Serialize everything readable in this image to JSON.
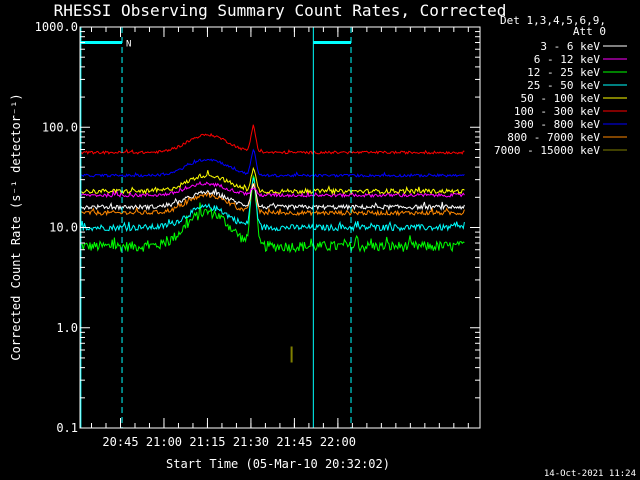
{
  "chart_data": {
    "type": "line",
    "title": "RHESSI Observing Summary Count Rates, Corrected",
    "xlabel": "Start Time (05-Mar-10 20:32:02)",
    "ylabel": "Corrected Count Rate (s⁻¹ detector⁻¹)",
    "y_scale": "log",
    "ylim": [
      0.1,
      1000
    ],
    "y_ticks": [
      {
        "value": 1000,
        "label": "1000.0"
      },
      {
        "value": 100,
        "label": "100.0"
      },
      {
        "value": 10,
        "label": "10.0"
      },
      {
        "value": 1,
        "label": "1.0"
      },
      {
        "value": 0.1,
        "label": "0.1"
      }
    ],
    "x_range_min": [
      0,
      138
    ],
    "x_ticks": [
      {
        "t": 13.97,
        "label": "20:45"
      },
      {
        "t": 28.97,
        "label": "21:00"
      },
      {
        "t": 43.97,
        "label": "21:15"
      },
      {
        "t": 58.97,
        "label": "21:30"
      },
      {
        "t": 73.97,
        "label": "21:45"
      },
      {
        "t": 88.97,
        "label": "22:00"
      }
    ],
    "grid": false,
    "legend_header": [
      "Det 1,3,4,5,6,9,",
      "Att 0"
    ],
    "series": [
      {
        "name": "3 - 6 keV",
        "color": "#ffffff",
        "base": 16,
        "hump": 1.4,
        "flare": 27,
        "noise": 0.05,
        "visible": true
      },
      {
        "name": "6 - 12 keV",
        "color": "#ff00ff",
        "base": 21,
        "hump": 1.3,
        "flare": 25,
        "noise": 0.04,
        "visible": true
      },
      {
        "name": "12 - 25 keV",
        "color": "#00ff00",
        "base": 6.5,
        "hump": 2.2,
        "flare": 30,
        "noise": 0.12,
        "visible": true
      },
      {
        "name": "25 - 50 keV",
        "color": "#00ffff",
        "base": 10,
        "hump": 1.6,
        "flare": 30,
        "noise": 0.07,
        "visible": true
      },
      {
        "name": "50 - 100 keV",
        "color": "#ffff00",
        "base": 23,
        "hump": 1.45,
        "flare": 38,
        "noise": 0.05,
        "visible": true
      },
      {
        "name": "100 - 300 keV",
        "color": "#ff0000",
        "base": 56,
        "hump": 1.5,
        "flare": 100,
        "noise": 0.03,
        "visible": true
      },
      {
        "name": "300 - 800 keV",
        "color": "#0000ff",
        "base": 33,
        "hump": 1.45,
        "flare": 58,
        "noise": 0.03,
        "visible": true
      },
      {
        "name": "800 - 7000 keV",
        "color": "#ff8800",
        "base": 14,
        "hump": 1.5,
        "flare": 28,
        "noise": 0.05,
        "visible": true
      },
      {
        "name": "7000 - 15000 keV",
        "color": "#808000",
        "base": 0.55,
        "hump": 1.0,
        "flare": 0.55,
        "noise": 0.0,
        "visible": false,
        "spike_t": 73,
        "spike_range": [
          0.45,
          0.65
        ]
      }
    ],
    "night_intervals": [
      [
        0,
        14.5
      ],
      [
        80.5,
        93.5
      ]
    ],
    "night_level": 700,
    "night_marker": "N",
    "dashed_lines_t": [
      14.5,
      93.5
    ],
    "solid_lines_t": [
      0.3,
      80.5
    ],
    "hump_center_t": 44,
    "hump_width_min": 9,
    "flare_peak_t": 59.8,
    "flare_width_min": 1.1
  },
  "footer": {
    "timestamp": "14-Oct-2021 11:24"
  },
  "colors": {
    "background": "#000000",
    "axes": "#ffffff",
    "night": "#00ffff"
  }
}
